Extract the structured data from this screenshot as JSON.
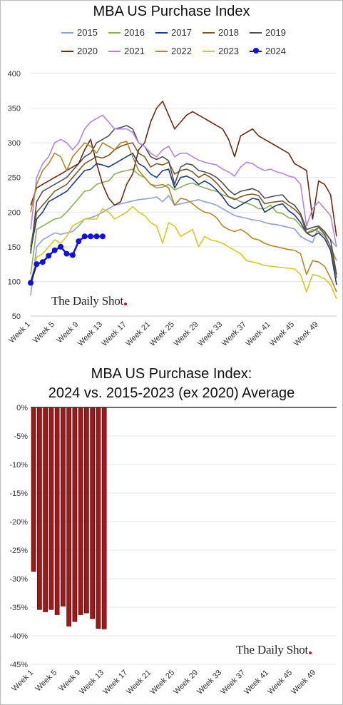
{
  "chart_data": [
    {
      "type": "line",
      "title": "MBA US Purchase Index",
      "ylim": [
        50,
        400
      ],
      "yticks": [
        50,
        100,
        150,
        200,
        250,
        300,
        350,
        400
      ],
      "xtick_labels": [
        "Week 1",
        "Week 5",
        "Week 9",
        "Week 13",
        "Week 17",
        "Week 21",
        "Week 25",
        "Week 29",
        "Week 33",
        "Week 37",
        "Week 41",
        "Week 45",
        "Week 49"
      ],
      "xtick_weeks": [
        1,
        5,
        9,
        13,
        17,
        21,
        25,
        29,
        33,
        37,
        41,
        45,
        49
      ],
      "n_weeks": 52,
      "grid": true,
      "legend_placement": "top",
      "watermark": "The Daily Shot",
      "series": [
        {
          "name": "2015",
          "color": "#8ea0d8",
          "values": [
            80,
            150,
            160,
            165,
            170,
            168,
            170,
            172,
            180,
            190,
            192,
            195,
            200,
            205,
            210,
            212,
            214,
            216,
            218,
            219,
            220,
            222,
            215,
            224,
            210,
            212,
            214,
            216,
            218,
            215,
            213,
            210,
            205,
            200,
            195,
            193,
            191,
            189,
            188,
            185,
            183,
            182,
            180,
            178,
            176,
            165,
            160,
            156,
            180,
            170,
            160,
            150
          ]
        },
        {
          "name": "2016",
          "color": "#8aae55",
          "values": [
            110,
            175,
            180,
            185,
            190,
            192,
            200,
            210,
            220,
            230,
            232,
            240,
            243,
            245,
            255,
            258,
            260,
            262,
            254,
            250,
            240,
            235,
            236,
            240,
            232,
            236,
            240,
            242,
            238,
            235,
            232,
            230,
            225,
            222,
            220,
            215,
            213,
            210,
            205,
            205,
            210,
            200,
            198,
            192,
            190,
            180,
            170,
            175,
            172,
            166,
            150,
            130
          ]
        },
        {
          "name": "2017",
          "color": "#1f3a8a",
          "values": [
            145,
            190,
            200,
            215,
            220,
            225,
            230,
            240,
            250,
            260,
            262,
            270,
            268,
            265,
            270,
            275,
            280,
            285,
            270,
            265,
            255,
            250,
            260,
            262,
            235,
            250,
            252,
            248,
            240,
            245,
            240,
            232,
            222,
            210,
            205,
            210,
            215,
            220,
            218,
            200,
            205,
            210,
            212,
            202,
            196,
            185,
            170,
            165,
            170,
            162,
            145,
            95
          ]
        },
        {
          "name": "2018",
          "color": "#7a5a28",
          "values": [
            150,
            200,
            210,
            220,
            230,
            235,
            240,
            250,
            260,
            270,
            275,
            280,
            278,
            282,
            290,
            295,
            298,
            300,
            285,
            280,
            265,
            270,
            268,
            272,
            255,
            260,
            262,
            258,
            250,
            255,
            250,
            242,
            232,
            222,
            218,
            222,
            225,
            226,
            224,
            212,
            214,
            215,
            216,
            210,
            204,
            195,
            170,
            172,
            178,
            168,
            150,
            105
          ]
        },
        {
          "name": "2019",
          "color": "#505050",
          "values": [
            140,
            215,
            230,
            235,
            240,
            245,
            250,
            260,
            270,
            280,
            285,
            300,
            305,
            310,
            320,
            322,
            325,
            320,
            300,
            295,
            280,
            276,
            280,
            274,
            240,
            265,
            270,
            268,
            260,
            258,
            255,
            250,
            242,
            232,
            225,
            230,
            232,
            234,
            230,
            220,
            222,
            224,
            225,
            215,
            210,
            198,
            175,
            178,
            180,
            172,
            160,
            110
          ]
        },
        {
          "name": "2020",
          "color": "#6b2c12",
          "values": [
            210,
            235,
            240,
            245,
            250,
            255,
            260,
            265,
            270,
            290,
            305,
            270,
            240,
            220,
            210,
            215,
            240,
            255,
            290,
            300,
            330,
            350,
            360,
            340,
            320,
            330,
            340,
            345,
            340,
            335,
            330,
            325,
            320,
            305,
            280,
            310,
            315,
            320,
            310,
            305,
            300,
            295,
            290,
            285,
            270,
            265,
            260,
            190,
            245,
            240,
            225,
            165
          ]
        },
        {
          "name": "2021",
          "color": "#b585e2",
          "values": [
            175,
            250,
            270,
            280,
            300,
            305,
            300,
            290,
            300,
            320,
            330,
            335,
            340,
            330,
            320,
            320,
            320,
            315,
            300,
            295,
            285,
            280,
            290,
            295,
            280,
            285,
            285,
            280,
            275,
            272,
            270,
            268,
            262,
            258,
            252,
            265,
            272,
            270,
            264,
            260,
            262,
            258,
            256,
            252,
            250,
            240,
            180,
            205,
            215,
            205,
            195,
            150
          ]
        },
        {
          "name": "2022",
          "color": "#b08a2a",
          "values": [
            200,
            240,
            260,
            270,
            285,
            280,
            260,
            280,
            290,
            300,
            295,
            285,
            300,
            295,
            290,
            300,
            302,
            280,
            260,
            250,
            240,
            238,
            240,
            235,
            210,
            220,
            218,
            212,
            205,
            200,
            198,
            192,
            180,
            175,
            172,
            175,
            170,
            162,
            160,
            155,
            152,
            150,
            148,
            146,
            145,
            140,
            110,
            130,
            128,
            122,
            105,
            85
          ]
        },
        {
          "name": "2023",
          "color": "#d4cc1e",
          "values": [
            100,
            135,
            140,
            150,
            160,
            155,
            165,
            180,
            185,
            190,
            190,
            190,
            205,
            200,
            190,
            195,
            200,
            208,
            200,
            195,
            185,
            180,
            155,
            185,
            180,
            165,
            170,
            175,
            150,
            165,
            160,
            158,
            155,
            150,
            145,
            140,
            130,
            128,
            126,
            123,
            122,
            121,
            120,
            119,
            118,
            110,
            85,
            110,
            108,
            104,
            95,
            75
          ]
        },
        {
          "name": "2024",
          "color": "#1010e0",
          "marker": true,
          "values": [
            98,
            125,
            128,
            137,
            145,
            150,
            140,
            138,
            158,
            165,
            165,
            165,
            165
          ]
        }
      ]
    },
    {
      "type": "bar",
      "title": "MBA US Purchase Index:",
      "subtitle": "2024 vs. 2015-2023 (ex 2020) Average",
      "ylim": [
        -45,
        0
      ],
      "ytick_values": [
        0,
        -5,
        -10,
        -15,
        -20,
        -25,
        -30,
        -35,
        -40,
        -45
      ],
      "ytick_labels": [
        "0%",
        "-5%",
        "-10%",
        "-15%",
        "-20%",
        "-25%",
        "-30%",
        "-35%",
        "-40%",
        "-45%"
      ],
      "xtick_labels": [
        "Week 1",
        "Week 5",
        "Week 9",
        "Week 13",
        "Week 17",
        "Week 21",
        "Week 25",
        "Week 29",
        "Week 33",
        "Week 37",
        "Week 41",
        "Week 45",
        "Week 49"
      ],
      "xtick_weeks": [
        1,
        5,
        9,
        13,
        17,
        21,
        25,
        29,
        33,
        37,
        41,
        45,
        49
      ],
      "n_weeks": 52,
      "bar_color": "#a01818",
      "values": [
        -28.7,
        -35.4,
        -35.8,
        -35.4,
        -36.3,
        -34.8,
        -38.3,
        -37.5,
        -36.3,
        -36.0,
        -37.0,
        -38.7,
        -38.8
      ],
      "watermark": "The Daily Shot"
    }
  ]
}
